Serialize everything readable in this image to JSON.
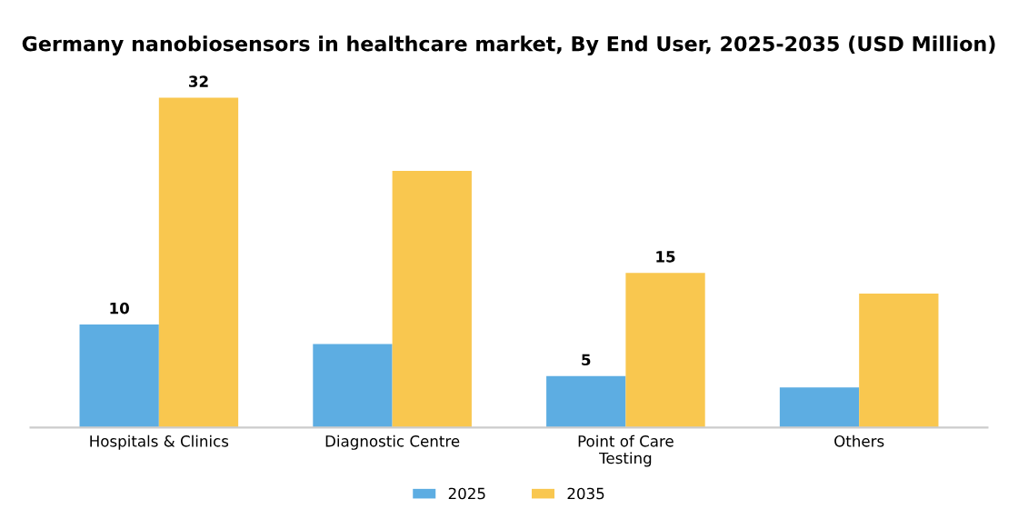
{
  "chart_data": {
    "type": "bar",
    "title": "Germany nanobiosensors in healthcare market, By End User, 2025-2035 (USD Million)",
    "categories": [
      "Hospitals & Clinics",
      "Diagnostic Centre",
      "Point of Care\nTesting",
      "Others"
    ],
    "series": [
      {
        "name": "2025",
        "color": "#5dade2",
        "values": [
          10,
          8.1,
          5,
          3.9
        ],
        "value_labels": [
          "10",
          null,
          "5",
          null
        ]
      },
      {
        "name": "2035",
        "color": "#f9c74f",
        "values": [
          32,
          24.9,
          15,
          13
        ],
        "value_labels": [
          "32",
          null,
          "15",
          null
        ]
      }
    ],
    "legend": "bottom",
    "grid": false
  }
}
